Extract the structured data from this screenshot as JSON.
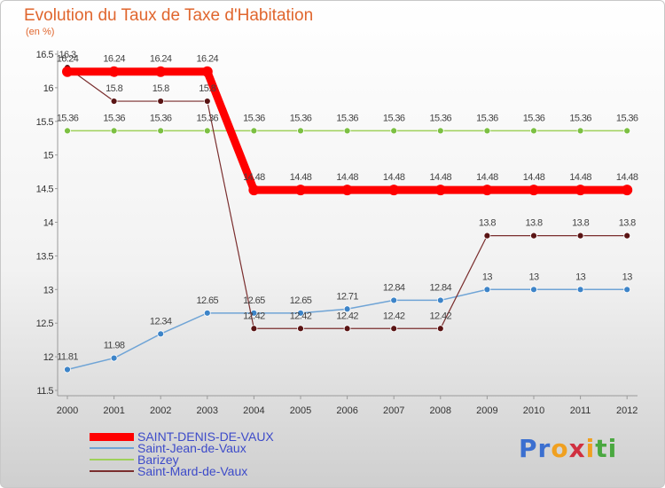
{
  "chart_data": {
    "type": "line",
    "title": "Evolution du Taux de Taxe d'Habitation",
    "unit_label": "(en %)",
    "x": [
      "2000",
      "2001",
      "2002",
      "2003",
      "2004",
      "2005",
      "2006",
      "2007",
      "2008",
      "2009",
      "2010",
      "2011",
      "2012"
    ],
    "ylim": [
      11.5,
      16.5
    ],
    "yticks": [
      "16.5",
      "16",
      "15.5",
      "15",
      "14.5",
      "14",
      "13.5",
      "13",
      "12.5",
      "12",
      "11.5"
    ],
    "grid": false,
    "legend_position": "bottom-left",
    "series": [
      {
        "name": "SAINT-DENIS-DE-VAUX",
        "color": "#ff0000",
        "values": [
          16.24,
          16.24,
          16.24,
          16.24,
          14.48,
          14.48,
          14.48,
          14.48,
          14.48,
          14.48,
          14.48,
          14.48,
          14.48
        ],
        "labels": [
          "16.24",
          "16.24",
          "16.24",
          "16.24",
          "14.48",
          "14.48",
          "14.48",
          "14.48",
          "14.48",
          "14.48",
          "14.48",
          "14.48",
          "14.48"
        ]
      },
      {
        "name": "Saint-Jean-de-Vaux",
        "color": "#6fa4d6",
        "values": [
          11.81,
          11.98,
          12.34,
          12.65,
          12.65,
          12.65,
          12.71,
          12.84,
          12.84,
          13,
          13,
          13,
          13
        ],
        "labels": [
          "11.81",
          "11.98",
          "12.34",
          "12.65",
          "12.65",
          "12.65",
          "12.71",
          "12.84",
          "12.84",
          "13",
          "13",
          "13",
          "13"
        ]
      },
      {
        "name": "Barizey",
        "color": "#9ed05a",
        "values": [
          15.36,
          15.36,
          15.36,
          15.36,
          15.36,
          15.36,
          15.36,
          15.36,
          15.36,
          15.36,
          15.36,
          15.36,
          15.36
        ],
        "labels": [
          "15.36",
          "15.36",
          "15.36",
          "15.36",
          "15.36",
          "15.36",
          "15.36",
          "15.36",
          "15.36",
          "15.36",
          "15.36",
          "15.36",
          "15.36"
        ]
      },
      {
        "name": "Saint-Mard-de-Vaux",
        "color": "#7a2e2e",
        "values": [
          16.3,
          15.8,
          15.8,
          15.8,
          12.42,
          12.42,
          12.42,
          12.42,
          12.42,
          13.8,
          13.8,
          13.8,
          13.8
        ],
        "labels": [
          "16.3",
          "15.8",
          "15.8",
          "15.8",
          "12.42",
          "12.42",
          "12.42",
          "12.42",
          "12.42",
          "13.8",
          "13.8",
          "13.8",
          "13.8"
        ]
      }
    ]
  },
  "logo": {
    "letters": [
      {
        "ch": "P",
        "color": "#3b6fd0"
      },
      {
        "ch": "r",
        "color": "#3b6fd0"
      },
      {
        "ch": "o",
        "color": "#f0a020"
      },
      {
        "ch": "x",
        "color": "#d03040"
      },
      {
        "ch": "i",
        "color": "#f0a020"
      },
      {
        "ch": "t",
        "color": "#4aa840"
      },
      {
        "ch": "i",
        "color": "#4aa840"
      }
    ]
  }
}
